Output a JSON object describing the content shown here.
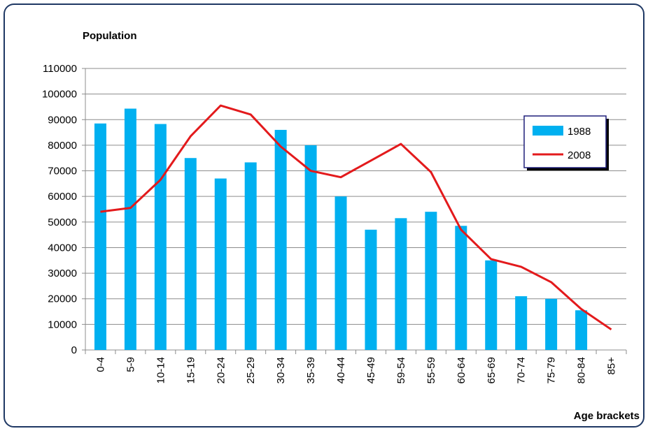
{
  "chart_data": {
    "type": "bar-line",
    "y_label": "Population",
    "x_label": "Age brackets",
    "categories": [
      "0-4",
      "5-9",
      "10-14",
      "15-19",
      "20-24",
      "25-29",
      "30-34",
      "35-39",
      "40-44",
      "45-49",
      "59-54",
      "55-59",
      "60-64",
      "65-69",
      "70-74",
      "75-79",
      "80-84",
      "85+"
    ],
    "series": [
      {
        "name": "1988",
        "type": "bar",
        "color": "#00b0f0",
        "values": [
          88500,
          94300,
          88300,
          75000,
          67000,
          73300,
          86000,
          80000,
          60000,
          47000,
          51500,
          54000,
          48500,
          35000,
          21000,
          20000,
          15500,
          null
        ]
      },
      {
        "name": "2008",
        "type": "line",
        "color": "#e31a1c",
        "values": [
          54000,
          55500,
          66500,
          83500,
          95500,
          92000,
          79500,
          70000,
          67500,
          74000,
          80500,
          69500,
          47000,
          35500,
          32500,
          26500,
          16000,
          8000
        ]
      }
    ],
    "ylim": [
      0,
      110000
    ],
    "yticks": [
      0,
      10000,
      20000,
      30000,
      40000,
      50000,
      60000,
      70000,
      80000,
      90000,
      100000,
      110000
    ],
    "grid": true,
    "legend": "right"
  }
}
